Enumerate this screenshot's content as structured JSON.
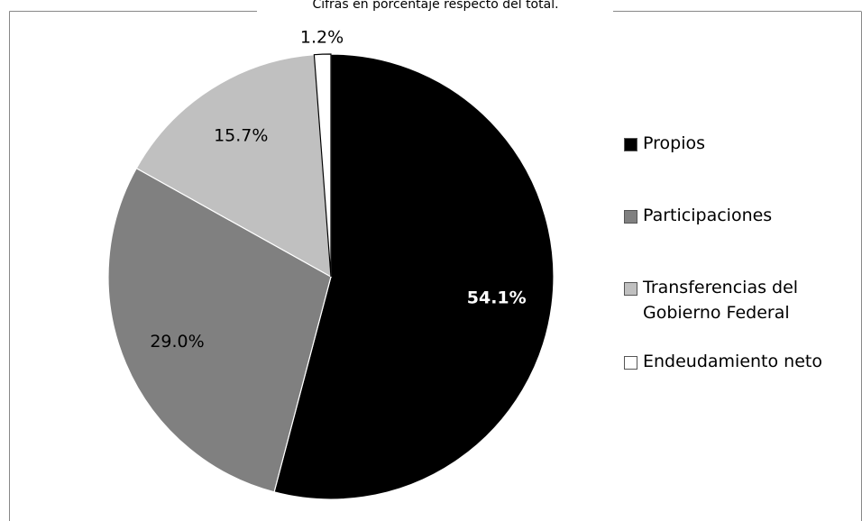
{
  "chart_data": {
    "type": "pie",
    "subtitle": "Cifras en porcentaje respecto del total.",
    "series": [
      {
        "name": "Propios",
        "color": "#000000",
        "values": [
          54.1
        ],
        "value_labels": [
          "54.1%"
        ]
      },
      {
        "name": "Participaciones",
        "color": "#808080",
        "values": [
          29.0
        ],
        "value_labels": [
          "29.0%"
        ]
      },
      {
        "name": "Transferencias del Gobierno Federal",
        "color": "#c0c0c0",
        "values": [
          15.7
        ],
        "value_labels": [
          "15.7%"
        ]
      },
      {
        "name": "Endeudamiento neto",
        "color": "#ffffff",
        "values": [
          1.2
        ],
        "value_labels": [
          "1.2%"
        ]
      }
    ],
    "legend": "right"
  }
}
